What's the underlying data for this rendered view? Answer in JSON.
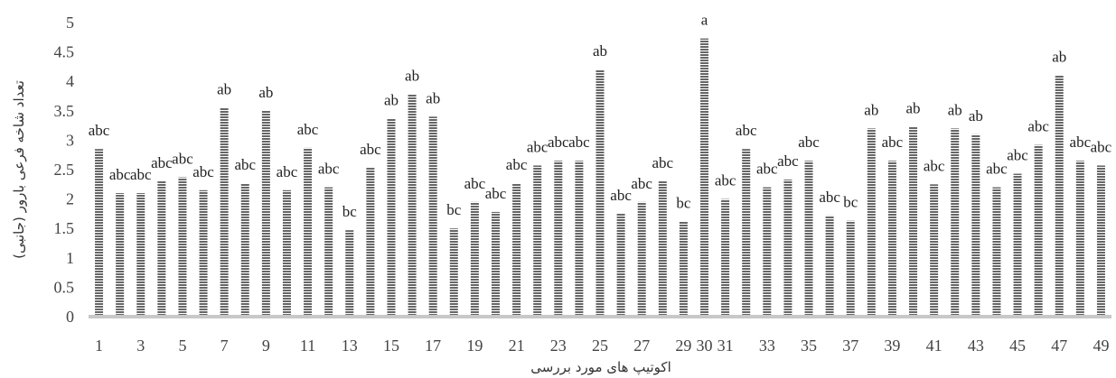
{
  "chart_data": {
    "type": "bar",
    "title": "",
    "xlabel": "اکوتیپ های مورد بررسی",
    "ylabel": "تعداد شاخه فرعی بارور (جانبی)",
    "ylim": [
      0,
      5
    ],
    "yticks": [
      "0",
      "0.5",
      "1",
      "1.5",
      "2",
      "2.5",
      "3",
      "3.5",
      "4",
      "4.5",
      "5"
    ],
    "grid": false,
    "legend": "none",
    "bar_color": "#666666",
    "bar_pattern": "horizontal-hatch",
    "categories": [
      "1",
      "2",
      "3",
      "4",
      "5",
      "6",
      "7",
      "8",
      "9",
      "10",
      "11",
      "12",
      "13",
      "14",
      "15",
      "16",
      "17",
      "18",
      "19",
      "20",
      "21",
      "22",
      "23",
      "24",
      "25",
      "26",
      "27",
      "28",
      "29",
      "30",
      "31",
      "32",
      "33",
      "34",
      "35",
      "36",
      "37",
      "38",
      "39",
      "40",
      "41",
      "42",
      "43",
      "44",
      "45",
      "46",
      "47",
      "48",
      "49"
    ],
    "xtick_labels": [
      "1",
      "",
      "3",
      "",
      "5",
      "",
      "7",
      "",
      "9",
      "",
      "11",
      "",
      "13",
      "",
      "15",
      "",
      "17",
      "",
      "19",
      "",
      "21",
      "",
      "23",
      "",
      "25",
      "",
      "27",
      "",
      "29",
      "30",
      "31",
      "",
      "33",
      "",
      "35",
      "",
      "37",
      "",
      "39",
      "",
      "41",
      "",
      "43",
      "",
      "45",
      "",
      "47",
      "",
      "49"
    ],
    "values": [
      2.85,
      2.1,
      2.1,
      2.3,
      2.37,
      2.15,
      3.55,
      2.27,
      3.5,
      2.15,
      2.87,
      2.2,
      1.47,
      2.53,
      3.37,
      3.78,
      3.4,
      1.5,
      1.95,
      1.78,
      2.27,
      2.57,
      2.65,
      2.65,
      4.2,
      1.75,
      1.95,
      2.3,
      1.62,
      4.73,
      2.0,
      2.85,
      2.2,
      2.33,
      2.65,
      1.72,
      1.63,
      3.2,
      2.65,
      3.23,
      2.25,
      3.2,
      3.1,
      2.2,
      2.43,
      2.92,
      4.1,
      2.65,
      2.57
    ],
    "letters": [
      "abc",
      "abc",
      "abc",
      "abc",
      "abc",
      "abc",
      "ab",
      "abc",
      "ab",
      "abc",
      "abc",
      "abc",
      "bc",
      "abc",
      "ab",
      "ab",
      "ab",
      "bc",
      "abc",
      "abc",
      "abc",
      "abc",
      "abc",
      "abc",
      "ab",
      "abc",
      "abc",
      "abc",
      "bc",
      "a",
      "abc",
      "abc",
      "abc",
      "abc",
      "abc",
      "abc",
      "bc",
      "ab",
      "abc",
      "ab",
      "abc",
      "ab",
      "ab",
      "abc",
      "abc",
      "abc",
      "ab",
      "abc",
      "abc"
    ]
  }
}
